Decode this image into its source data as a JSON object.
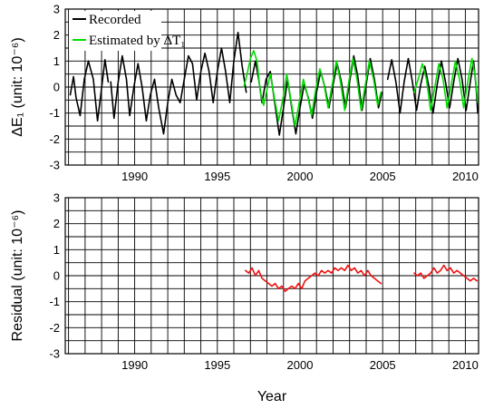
{
  "figure": {
    "xlabel": "Year",
    "colors": {
      "recorded": "#000000",
      "estimated": "#00dd00",
      "residual": "#ee1111"
    }
  },
  "chart_data": [
    {
      "type": "line",
      "ylabel": "ΔE₁ (unit: 10⁻⁶)",
      "xlim": [
        1985.8,
        2010.8
      ],
      "ylim": [
        -3,
        3
      ],
      "x_ticks": [
        1990,
        1995,
        2000,
        2005,
        2010
      ],
      "y_ticks": [
        3,
        2,
        1,
        0,
        -1,
        -2,
        -3
      ],
      "x_tick_labels": [
        "1990",
        "1995",
        "2000",
        "2005",
        "2010"
      ],
      "y_tick_labels": [
        "3",
        "2",
        "1",
        "0",
        "-1",
        "-2",
        "-3"
      ],
      "legend": {
        "position": "top-left",
        "entries": [
          "Recorded",
          "Estimated by ΔT₁"
        ]
      },
      "series": [
        {
          "name": "Recorded",
          "color": "#000000",
          "segments": [
            [
              [
                1986.1,
                -0.3
              ],
              [
                1986.3,
                0.4
              ],
              [
                1986.45,
                -0.4
              ],
              [
                1986.7,
                -1.1
              ],
              [
                1986.95,
                0.3
              ],
              [
                1987.2,
                1.0
              ],
              [
                1987.5,
                0.3
              ],
              [
                1987.75,
                -1.3
              ],
              [
                1987.95,
                -0.3
              ],
              [
                1988.2,
                1.05
              ],
              [
                1988.4,
                0.2
              ]
            ],
            [
              [
                1988.55,
                0.2
              ],
              [
                1988.75,
                -1.2
              ],
              [
                1989.0,
                0.2
              ],
              [
                1989.25,
                1.2
              ],
              [
                1989.5,
                0.3
              ],
              [
                1989.7,
                -1.1
              ],
              [
                1989.95,
                0.0
              ],
              [
                1990.2,
                0.9
              ],
              [
                1990.45,
                0.0
              ],
              [
                1990.7,
                -1.3
              ],
              [
                1990.95,
                -0.3
              ],
              [
                1991.2,
                0.3
              ],
              [
                1991.45,
                -0.8
              ],
              [
                1991.75,
                -1.8
              ],
              [
                1992.0,
                -0.6
              ],
              [
                1992.25,
                0.3
              ],
              [
                1992.5,
                -0.3
              ],
              [
                1992.75,
                -0.6
              ],
              [
                1993.0,
                0.3
              ],
              [
                1993.25,
                1.2
              ],
              [
                1993.5,
                0.9
              ],
              [
                1993.75,
                -0.5
              ],
              [
                1994.0,
                0.6
              ],
              [
                1994.25,
                1.3
              ],
              [
                1994.5,
                0.6
              ],
              [
                1994.75,
                -0.6
              ],
              [
                1995.0,
                0.6
              ],
              [
                1995.25,
                1.5
              ],
              [
                1995.5,
                0.6
              ],
              [
                1995.75,
                -0.6
              ],
              [
                1996.0,
                1.0
              ],
              [
                1996.25,
                2.1
              ],
              [
                1996.5,
                0.8
              ],
              [
                1996.75,
                -0.2
              ]
            ],
            [
              [
                1997.05,
                0.2
              ],
              [
                1997.3,
                1.0
              ],
              [
                1997.5,
                0.3
              ],
              [
                1997.7,
                -0.6
              ],
              [
                1997.95,
                0.3
              ],
              [
                1998.2,
                0.6
              ],
              [
                1998.45,
                -0.5
              ],
              [
                1998.75,
                -1.85
              ],
              [
                1999.0,
                -0.8
              ],
              [
                1999.25,
                0.3
              ],
              [
                1999.5,
                -0.8
              ],
              [
                1999.75,
                -1.8
              ],
              [
                2000.0,
                -0.8
              ],
              [
                2000.25,
                0.1
              ],
              [
                2000.5,
                -0.4
              ],
              [
                2000.75,
                -1.2
              ],
              [
                2001.0,
                -0.2
              ],
              [
                2001.25,
                0.6
              ],
              [
                2001.5,
                0.0
              ],
              [
                2001.75,
                -0.8
              ],
              [
                2002.0,
                0.1
              ],
              [
                2002.25,
                0.9
              ],
              [
                2002.5,
                0.2
              ],
              [
                2002.75,
                -0.8
              ],
              [
                2003.0,
                0.2
              ],
              [
                2003.25,
                1.2
              ],
              [
                2003.5,
                0.4
              ],
              [
                2003.75,
                -0.9
              ],
              [
                2004.0,
                0.1
              ],
              [
                2004.25,
                1.1
              ],
              [
                2004.5,
                0.3
              ],
              [
                2004.75,
                -0.8
              ],
              [
                2004.95,
                -0.2
              ]
            ],
            [
              [
                2005.3,
                0.3
              ],
              [
                2005.55,
                1.05
              ],
              [
                2005.8,
                0.2
              ],
              [
                2006.05,
                -1.0
              ],
              [
                2006.3,
                0.2
              ],
              [
                2006.55,
                1.1
              ],
              [
                2006.8,
                0.2
              ],
              [
                2007.05,
                -0.9
              ],
              [
                2007.3,
                0.1
              ],
              [
                2007.55,
                0.8
              ],
              [
                2007.8,
                0.0
              ],
              [
                2008.05,
                -1.0
              ],
              [
                2008.3,
                0.1
              ],
              [
                2008.55,
                1.0
              ],
              [
                2008.8,
                0.2
              ],
              [
                2009.05,
                -0.8
              ],
              [
                2009.3,
                0.2
              ],
              [
                2009.55,
                1.1
              ],
              [
                2009.8,
                0.3
              ],
              [
                2010.05,
                -0.9
              ],
              [
                2010.3,
                0.2
              ],
              [
                2010.5,
                1.0
              ],
              [
                2010.65,
                0.0
              ],
              [
                2010.75,
                -1.0
              ]
            ]
          ]
        },
        {
          "name": "Estimated by ΔT₁",
          "color": "#00dd00",
          "segments": [
            [
              [
                1996.6,
                0.0
              ],
              [
                1996.8,
                0.5
              ],
              [
                1997.0,
                1.1
              ],
              [
                1997.2,
                1.4
              ],
              [
                1997.4,
                1.0
              ],
              [
                1997.6,
                -0.2
              ],
              [
                1997.8,
                -0.7
              ],
              [
                1998.0,
                -0.1
              ],
              [
                1998.2,
                0.5
              ],
              [
                1998.45,
                -0.4
              ],
              [
                1998.7,
                -1.3
              ],
              [
                1998.95,
                -0.5
              ],
              [
                1999.2,
                0.5
              ],
              [
                1999.45,
                -0.5
              ],
              [
                1999.7,
                -1.5
              ],
              [
                1999.95,
                -0.6
              ],
              [
                2000.2,
                0.3
              ],
              [
                2000.45,
                -0.3
              ],
              [
                2000.7,
                -1.1
              ],
              [
                2000.95,
                -0.1
              ],
              [
                2001.2,
                0.7
              ],
              [
                2001.45,
                0.1
              ],
              [
                2001.7,
                -0.8
              ],
              [
                2001.95,
                0.1
              ],
              [
                2002.2,
                1.0
              ],
              [
                2002.45,
                0.2
              ],
              [
                2002.7,
                -0.9
              ],
              [
                2002.95,
                0.2
              ],
              [
                2003.2,
                1.1
              ],
              [
                2003.45,
                0.3
              ],
              [
                2003.7,
                -0.9
              ],
              [
                2003.95,
                0.1
              ],
              [
                2004.2,
                1.0
              ],
              [
                2004.45,
                0.3
              ],
              [
                2004.7,
                -0.7
              ],
              [
                2004.9,
                -0.2
              ]
            ],
            [
              [
                2006.9,
                -0.2
              ],
              [
                2007.15,
                0.3
              ],
              [
                2007.4,
                0.9
              ],
              [
                2007.65,
                0.3
              ],
              [
                2007.9,
                -0.9
              ],
              [
                2008.15,
                0.0
              ],
              [
                2008.4,
                0.9
              ],
              [
                2008.65,
                0.3
              ],
              [
                2008.9,
                -0.8
              ],
              [
                2009.15,
                0.1
              ],
              [
                2009.4,
                1.0
              ],
              [
                2009.65,
                0.3
              ],
              [
                2009.9,
                -0.8
              ],
              [
                2010.15,
                0.2
              ],
              [
                2010.4,
                1.1
              ],
              [
                2010.6,
                0.4
              ],
              [
                2010.75,
                -0.6
              ]
            ]
          ]
        }
      ]
    },
    {
      "type": "line",
      "ylabel": "Residual (unit: 10⁻⁶)",
      "xlim": [
        1985.8,
        2010.8
      ],
      "ylim": [
        -3,
        3
      ],
      "x_ticks": [
        1990,
        1995,
        2000,
        2005,
        2010
      ],
      "y_ticks": [
        3,
        2,
        1,
        0,
        -1,
        -2,
        -3
      ],
      "x_tick_labels": [
        "1990",
        "1995",
        "2000",
        "2005",
        "2010"
      ],
      "y_tick_labels": [
        "3",
        "2",
        "1",
        "0",
        "-1",
        "-2",
        "-3"
      ],
      "series": [
        {
          "name": "Residual",
          "color": "#ee1111",
          "segments": [
            [
              [
                1996.7,
                0.2
              ],
              [
                1996.9,
                0.1
              ],
              [
                1997.1,
                0.3
              ],
              [
                1997.3,
                0.0
              ],
              [
                1997.5,
                0.2
              ],
              [
                1997.7,
                -0.1
              ],
              [
                1997.9,
                -0.2
              ],
              [
                1998.1,
                -0.3
              ],
              [
                1998.3,
                -0.4
              ],
              [
                1998.5,
                -0.3
              ],
              [
                1998.7,
                -0.5
              ],
              [
                1998.9,
                -0.4
              ],
              [
                1999.1,
                -0.6
              ],
              [
                1999.3,
                -0.5
              ],
              [
                1999.5,
                -0.4
              ],
              [
                1999.7,
                -0.5
              ],
              [
                1999.9,
                -0.3
              ],
              [
                2000.1,
                -0.5
              ],
              [
                2000.3,
                -0.2
              ],
              [
                2000.5,
                -0.1
              ],
              [
                2000.7,
                0.0
              ],
              [
                2000.9,
                0.1
              ],
              [
                2001.1,
                0.0
              ],
              [
                2001.3,
                0.2
              ],
              [
                2001.5,
                0.1
              ],
              [
                2001.7,
                0.2
              ],
              [
                2001.9,
                0.1
              ],
              [
                2002.1,
                0.3
              ],
              [
                2002.3,
                0.2
              ],
              [
                2002.5,
                0.3
              ],
              [
                2002.7,
                0.2
              ],
              [
                2002.9,
                0.4
              ],
              [
                2003.1,
                0.2
              ],
              [
                2003.3,
                0.3
              ],
              [
                2003.5,
                0.1
              ],
              [
                2003.7,
                0.2
              ],
              [
                2003.9,
                0.0
              ],
              [
                2004.1,
                0.2
              ],
              [
                2004.3,
                0.0
              ],
              [
                2004.5,
                -0.1
              ],
              [
                2004.7,
                -0.2
              ],
              [
                2004.9,
                -0.3
              ]
            ],
            [
              [
                2006.9,
                0.1
              ],
              [
                2007.1,
                0.0
              ],
              [
                2007.3,
                0.1
              ],
              [
                2007.5,
                -0.1
              ],
              [
                2007.7,
                0.0
              ],
              [
                2007.9,
                0.1
              ],
              [
                2008.1,
                0.3
              ],
              [
                2008.3,
                0.1
              ],
              [
                2008.5,
                0.2
              ],
              [
                2008.7,
                0.4
              ],
              [
                2008.9,
                0.2
              ],
              [
                2009.1,
                0.3
              ],
              [
                2009.3,
                0.1
              ],
              [
                2009.5,
                0.2
              ],
              [
                2009.7,
                0.1
              ],
              [
                2009.9,
                0.0
              ],
              [
                2010.1,
                -0.1
              ],
              [
                2010.3,
                -0.2
              ],
              [
                2010.5,
                -0.1
              ],
              [
                2010.7,
                -0.2
              ]
            ]
          ]
        }
      ]
    }
  ]
}
